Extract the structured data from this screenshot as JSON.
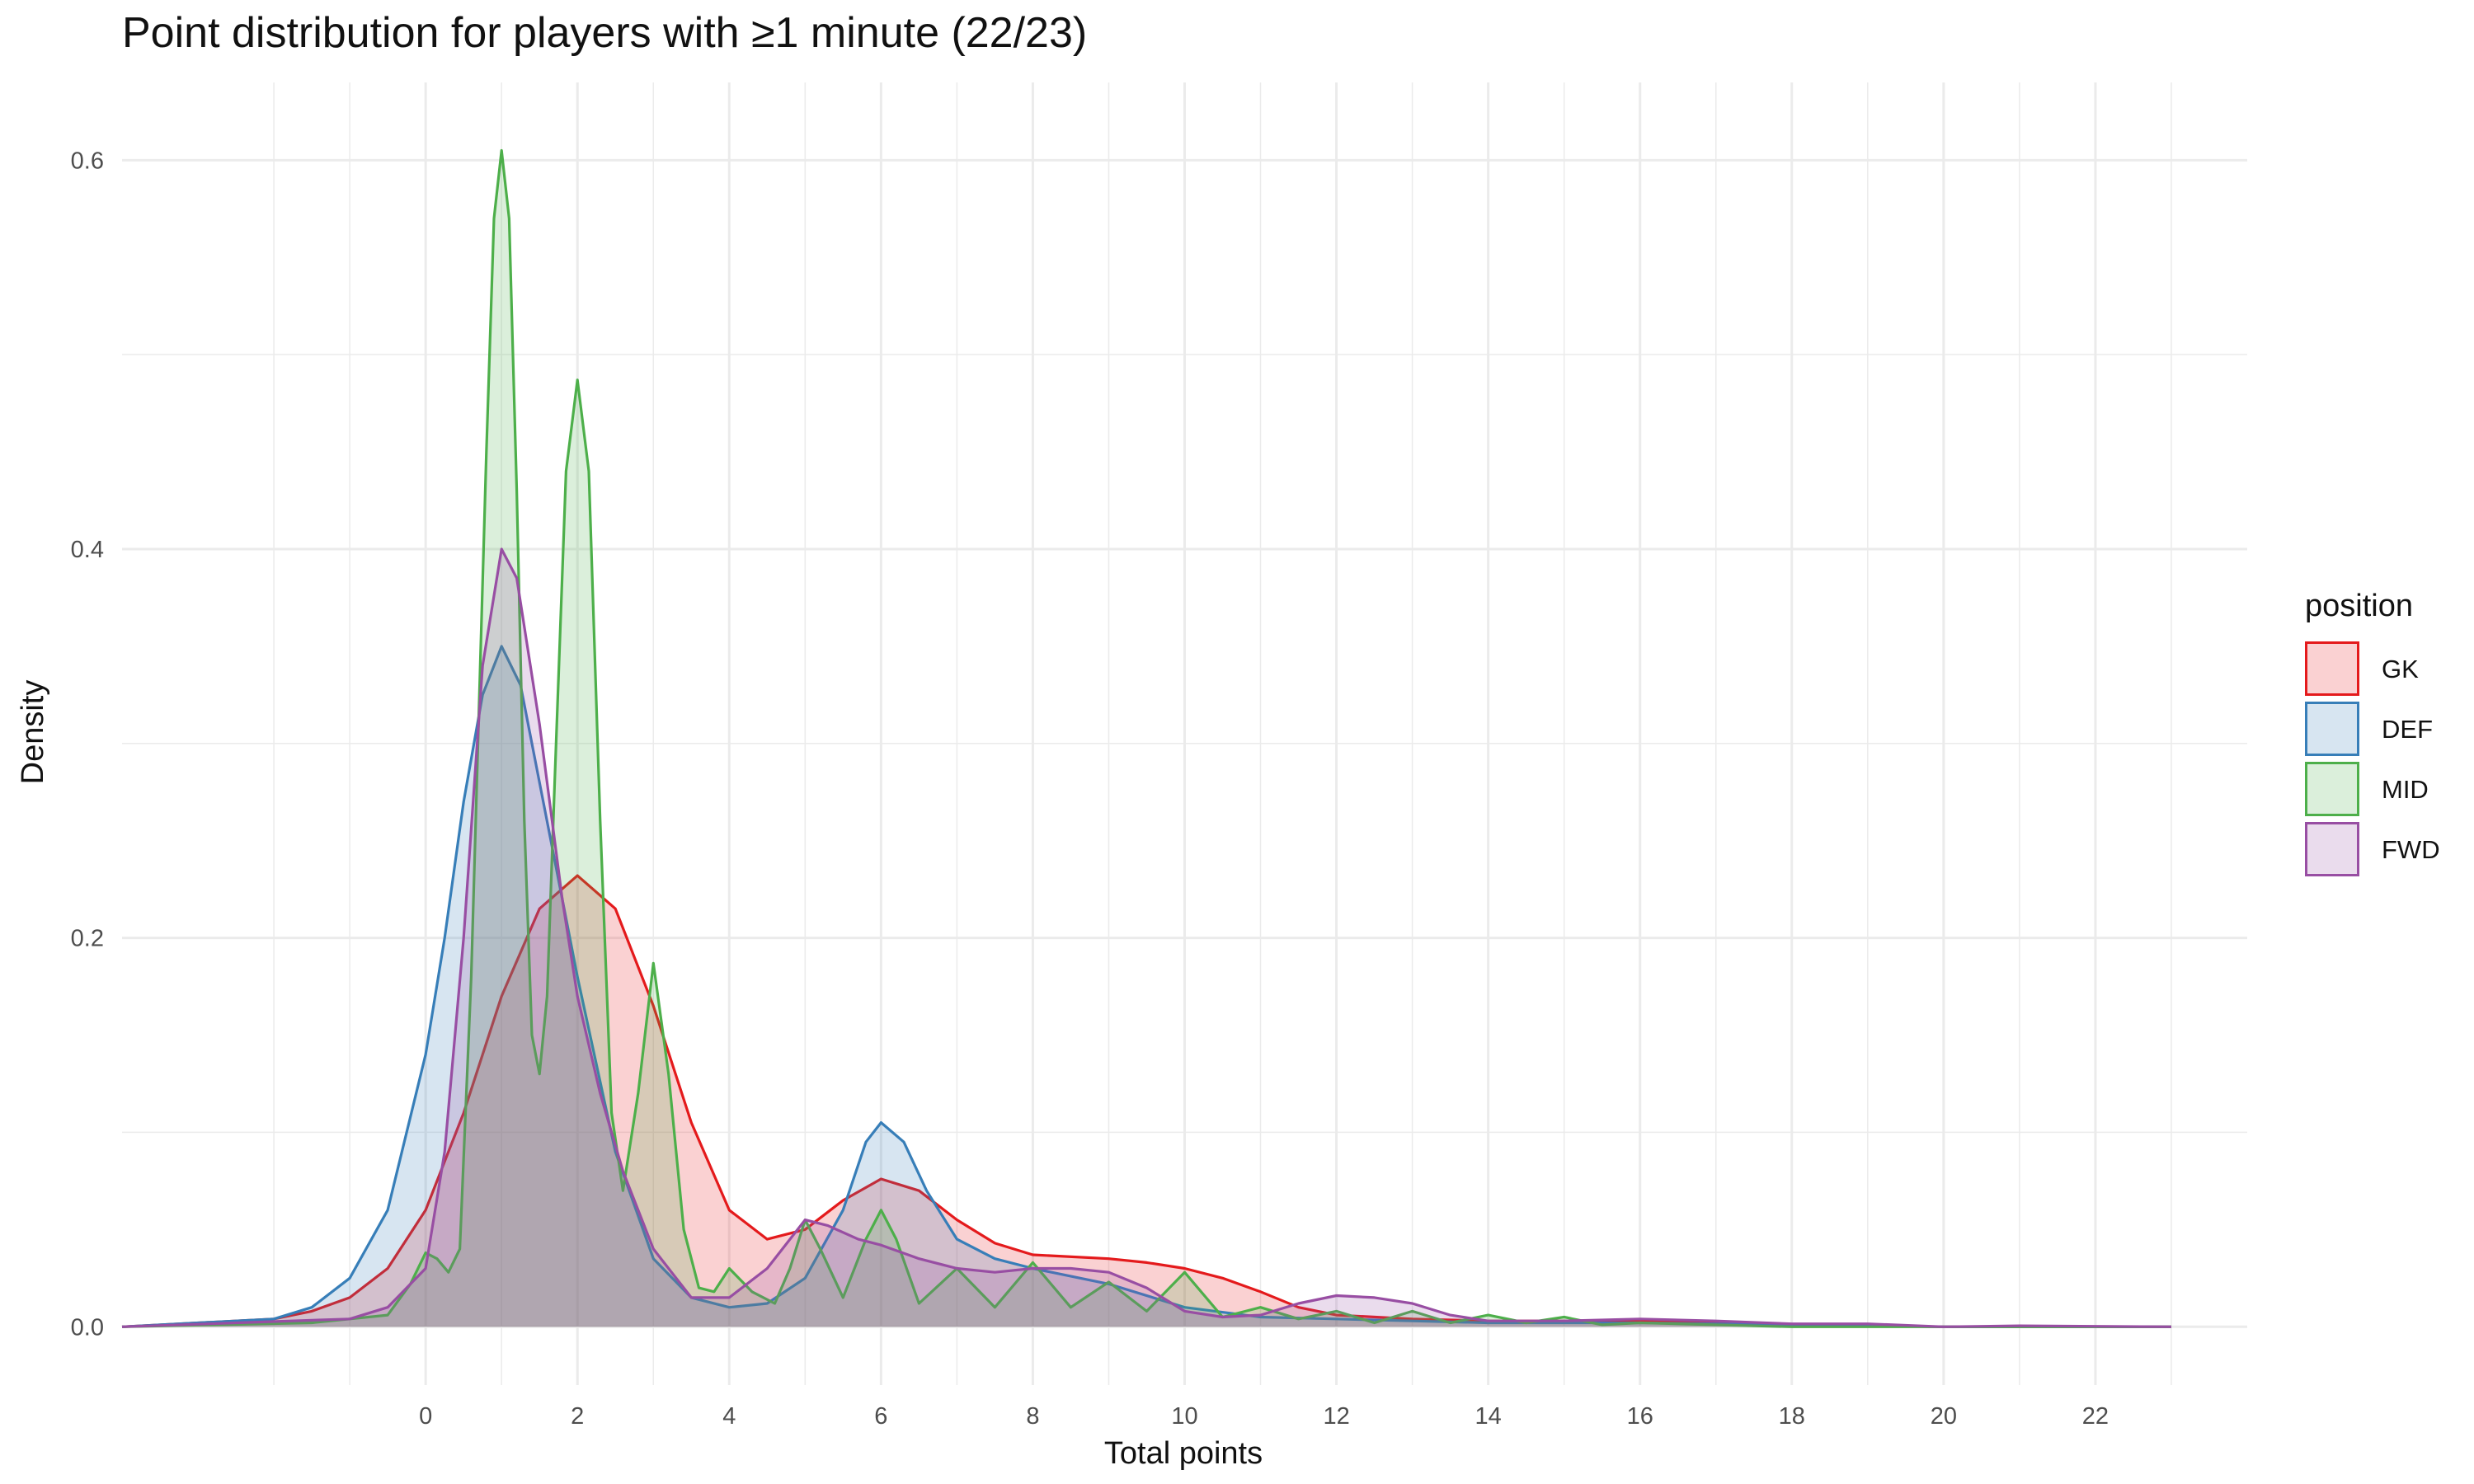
{
  "title": "Point distribution for players with ≥1 minute (22/23)",
  "chart_data": {
    "type": "area",
    "title": "Point distribution for players with ≥1 minute (22/23)",
    "xlabel": "Total points",
    "ylabel": "Density",
    "xlim": [
      -4.0,
      24.0
    ],
    "ylim": [
      -0.03,
      0.64
    ],
    "x_ticks": [
      0,
      2,
      4,
      6,
      8,
      10,
      12,
      14,
      16,
      18,
      20,
      22
    ],
    "y_ticks": [
      0.0,
      0.2,
      0.4,
      0.6
    ],
    "y_tick_labels": [
      "0.0",
      "0.2",
      "0.4",
      "0.6"
    ],
    "grid": true,
    "legend": {
      "title": "position",
      "position": "right"
    },
    "series": [
      {
        "name": "GK",
        "color": "#e41a1c",
        "points": [
          [
            -4.0,
            0.0
          ],
          [
            -2.0,
            0.004
          ],
          [
            -1.5,
            0.008
          ],
          [
            -1.0,
            0.015
          ],
          [
            -0.5,
            0.03
          ],
          [
            0.0,
            0.06
          ],
          [
            0.5,
            0.11
          ],
          [
            1.0,
            0.17
          ],
          [
            1.5,
            0.215
          ],
          [
            2.0,
            0.232
          ],
          [
            2.5,
            0.215
          ],
          [
            3.0,
            0.165
          ],
          [
            3.5,
            0.105
          ],
          [
            4.0,
            0.06
          ],
          [
            4.5,
            0.045
          ],
          [
            5.0,
            0.05
          ],
          [
            5.5,
            0.065
          ],
          [
            6.0,
            0.076
          ],
          [
            6.5,
            0.07
          ],
          [
            7.0,
            0.055
          ],
          [
            7.5,
            0.043
          ],
          [
            8.0,
            0.037
          ],
          [
            9.0,
            0.035
          ],
          [
            9.5,
            0.033
          ],
          [
            10.0,
            0.03
          ],
          [
            10.5,
            0.025
          ],
          [
            11.0,
            0.018
          ],
          [
            11.5,
            0.01
          ],
          [
            12.0,
            0.006
          ],
          [
            13.0,
            0.004
          ],
          [
            14.0,
            0.003
          ],
          [
            16.0,
            0.003
          ],
          [
            18.0,
            0.001
          ],
          [
            20.0,
            0.0
          ],
          [
            23.0,
            0.0
          ]
        ]
      },
      {
        "name": "DEF",
        "color": "#377eb8",
        "points": [
          [
            -4.0,
            0.0
          ],
          [
            -2.0,
            0.004
          ],
          [
            -1.5,
            0.01
          ],
          [
            -1.0,
            0.025
          ],
          [
            -0.5,
            0.06
          ],
          [
            0.0,
            0.14
          ],
          [
            0.25,
            0.2
          ],
          [
            0.5,
            0.27
          ],
          [
            0.75,
            0.325
          ],
          [
            1.0,
            0.35
          ],
          [
            1.25,
            0.33
          ],
          [
            1.5,
            0.28
          ],
          [
            2.0,
            0.18
          ],
          [
            2.5,
            0.09
          ],
          [
            3.0,
            0.035
          ],
          [
            3.5,
            0.015
          ],
          [
            4.0,
            0.01
          ],
          [
            4.5,
            0.012
          ],
          [
            5.0,
            0.025
          ],
          [
            5.5,
            0.06
          ],
          [
            5.8,
            0.095
          ],
          [
            6.0,
            0.105
          ],
          [
            6.3,
            0.095
          ],
          [
            6.6,
            0.07
          ],
          [
            7.0,
            0.045
          ],
          [
            7.5,
            0.035
          ],
          [
            8.0,
            0.03
          ],
          [
            9.0,
            0.022
          ],
          [
            10.0,
            0.01
          ],
          [
            11.0,
            0.005
          ],
          [
            12.0,
            0.004
          ],
          [
            13.0,
            0.003
          ],
          [
            14.0,
            0.002
          ],
          [
            16.0,
            0.002
          ],
          [
            18.0,
            0.001
          ],
          [
            20.0,
            0.0
          ],
          [
            23.0,
            0.0
          ]
        ]
      },
      {
        "name": "MID",
        "color": "#4daf4a",
        "points": [
          [
            -4.0,
            0.0
          ],
          [
            -1.5,
            0.002
          ],
          [
            -0.5,
            0.006
          ],
          [
            -0.2,
            0.022
          ],
          [
            0.0,
            0.038
          ],
          [
            0.15,
            0.035
          ],
          [
            0.3,
            0.028
          ],
          [
            0.45,
            0.04
          ],
          [
            0.6,
            0.18
          ],
          [
            0.8,
            0.45
          ],
          [
            0.9,
            0.57
          ],
          [
            1.0,
            0.605
          ],
          [
            1.1,
            0.57
          ],
          [
            1.2,
            0.43
          ],
          [
            1.3,
            0.26
          ],
          [
            1.4,
            0.15
          ],
          [
            1.5,
            0.13
          ],
          [
            1.6,
            0.17
          ],
          [
            1.7,
            0.28
          ],
          [
            1.85,
            0.44
          ],
          [
            2.0,
            0.487
          ],
          [
            2.15,
            0.44
          ],
          [
            2.3,
            0.26
          ],
          [
            2.45,
            0.11
          ],
          [
            2.6,
            0.07
          ],
          [
            2.8,
            0.12
          ],
          [
            3.0,
            0.187
          ],
          [
            3.2,
            0.13
          ],
          [
            3.4,
            0.05
          ],
          [
            3.6,
            0.02
          ],
          [
            3.8,
            0.018
          ],
          [
            4.0,
            0.03
          ],
          [
            4.3,
            0.018
          ],
          [
            4.6,
            0.012
          ],
          [
            4.8,
            0.03
          ],
          [
            5.0,
            0.055
          ],
          [
            5.2,
            0.04
          ],
          [
            5.5,
            0.015
          ],
          [
            5.8,
            0.045
          ],
          [
            6.0,
            0.06
          ],
          [
            6.2,
            0.045
          ],
          [
            6.5,
            0.012
          ],
          [
            7.0,
            0.03
          ],
          [
            7.5,
            0.01
          ],
          [
            8.0,
            0.033
          ],
          [
            8.5,
            0.01
          ],
          [
            9.0,
            0.023
          ],
          [
            9.5,
            0.008
          ],
          [
            10.0,
            0.028
          ],
          [
            10.5,
            0.005
          ],
          [
            11.0,
            0.01
          ],
          [
            11.5,
            0.004
          ],
          [
            12.0,
            0.008
          ],
          [
            12.5,
            0.002
          ],
          [
            13.0,
            0.008
          ],
          [
            13.5,
            0.002
          ],
          [
            14.0,
            0.006
          ],
          [
            14.5,
            0.002
          ],
          [
            15.0,
            0.005
          ],
          [
            15.5,
            0.001
          ],
          [
            16.0,
            0.002
          ],
          [
            18.0,
            0.0
          ],
          [
            23.0,
            0.0
          ]
        ]
      },
      {
        "name": "FWD",
        "color": "#984ea3",
        "points": [
          [
            -4.0,
            0.0
          ],
          [
            -1.0,
            0.004
          ],
          [
            -0.5,
            0.01
          ],
          [
            0.0,
            0.03
          ],
          [
            0.25,
            0.09
          ],
          [
            0.5,
            0.2
          ],
          [
            0.75,
            0.34
          ],
          [
            1.0,
            0.4
          ],
          [
            1.2,
            0.385
          ],
          [
            1.5,
            0.31
          ],
          [
            1.8,
            0.22
          ],
          [
            2.0,
            0.17
          ],
          [
            2.3,
            0.12
          ],
          [
            2.6,
            0.08
          ],
          [
            3.0,
            0.04
          ],
          [
            3.5,
            0.015
          ],
          [
            4.0,
            0.015
          ],
          [
            4.5,
            0.03
          ],
          [
            5.0,
            0.055
          ],
          [
            5.3,
            0.052
          ],
          [
            5.7,
            0.045
          ],
          [
            6.0,
            0.042
          ],
          [
            6.5,
            0.035
          ],
          [
            7.0,
            0.03
          ],
          [
            7.5,
            0.028
          ],
          [
            8.0,
            0.03
          ],
          [
            8.5,
            0.03
          ],
          [
            9.0,
            0.028
          ],
          [
            9.5,
            0.02
          ],
          [
            10.0,
            0.008
          ],
          [
            10.5,
            0.005
          ],
          [
            11.0,
            0.006
          ],
          [
            11.5,
            0.012
          ],
          [
            12.0,
            0.016
          ],
          [
            12.5,
            0.015
          ],
          [
            13.0,
            0.012
          ],
          [
            13.5,
            0.006
          ],
          [
            14.0,
            0.003
          ],
          [
            15.0,
            0.003
          ],
          [
            16.0,
            0.004
          ],
          [
            17.0,
            0.003
          ],
          [
            18.0,
            0.0015
          ],
          [
            19.0,
            0.0015
          ],
          [
            20.0,
            0.0
          ],
          [
            21.0,
            0.0005
          ],
          [
            23.0,
            0.0
          ]
        ]
      }
    ]
  }
}
